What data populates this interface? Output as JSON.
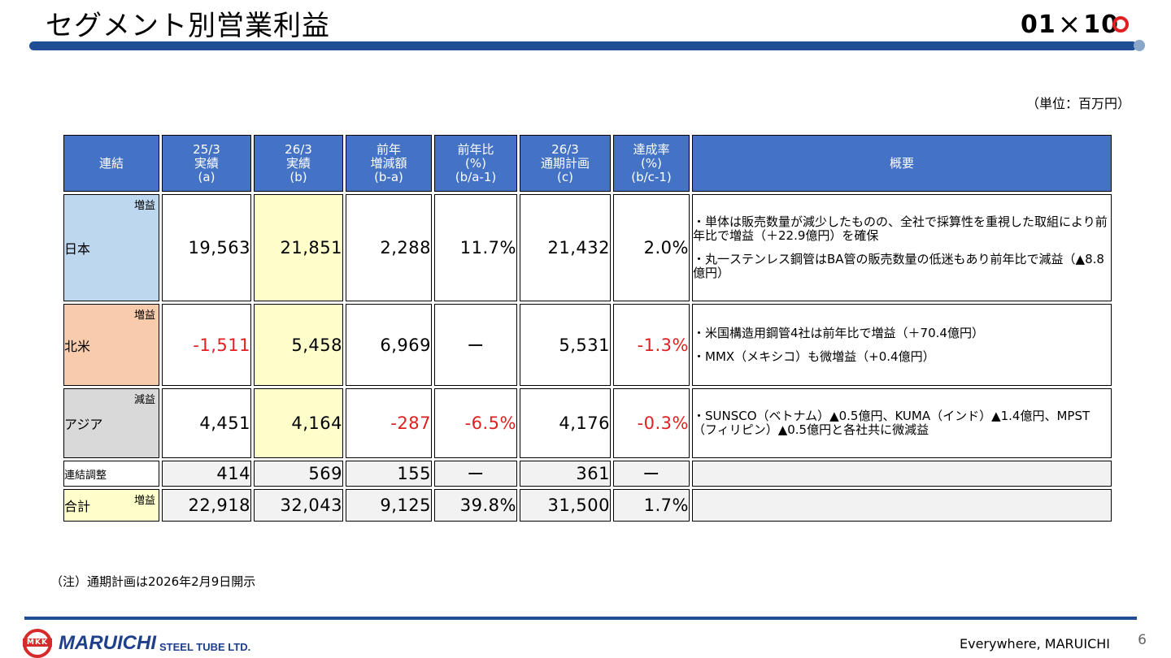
{
  "title": "セグメント別営業利益",
  "brand": {
    "left": "01",
    "cross": "×",
    "right": "10"
  },
  "unit_note": "（単位：百万円）",
  "headers": {
    "col0": "連結",
    "col1": [
      "25/3",
      "実績",
      "(a)"
    ],
    "col2": [
      "26/3",
      "実績",
      "(b)"
    ],
    "col3": [
      "前年",
      "増減額",
      "(b-a)"
    ],
    "col4": [
      "前年比",
      "(%)",
      "(b/a-1)"
    ],
    "col5": [
      "26/3",
      "通期計画",
      "(c)"
    ],
    "col6": [
      "達成率",
      "(%)",
      "(b/c-1)"
    ],
    "col7": "概要"
  },
  "rows": {
    "japan": {
      "region": "日本",
      "tag": "増益",
      "a": "19,563",
      "b": "21,851",
      "diff": "2,288",
      "yoy": "11.7%",
      "plan": "21,432",
      "rate": "2.0%",
      "summary": [
        "・単体は販売数量が減少したものの、全社で採算性を重視した取組により前年比で増益（＋22.9億円）を確保",
        "・丸一ステンレス鋼管はBA管の販売数量の低迷もあり前年比で減益（▲8.8億円）"
      ]
    },
    "na": {
      "region": "北米",
      "tag": "増益",
      "a": "-1,511",
      "b": "5,458",
      "diff": "6,969",
      "yoy": "ー",
      "plan": "5,531",
      "rate": "-1.3%",
      "summary": [
        "・米国構造用鋼管4社は前年比で増益（＋70.4億円）",
        "・MMX（メキシコ）も微増益（+0.4億円）"
      ]
    },
    "asia": {
      "region": "アジア",
      "tag": "減益",
      "a": "4,451",
      "b": "4,164",
      "diff": "-287",
      "yoy": "-6.5%",
      "plan": "4,176",
      "rate": "-0.3%",
      "summary": [
        "・SUNSCO（ベトナム）▲0.5億円、KUMA（インド）▲1.4億円、MPST（フィリピン）▲0.5億円と各社共に微減益"
      ]
    },
    "adj": {
      "region": "連結調整",
      "a": "414",
      "b": "569",
      "diff": "155",
      "yoy": "ー",
      "plan": "361",
      "rate": "ー"
    },
    "total": {
      "region": "合計",
      "tag": "増益",
      "a": "22,918",
      "b": "32,043",
      "diff": "9,125",
      "yoy": "39.8%",
      "plan": "31,500",
      "rate": "1.7%"
    }
  },
  "footnote": "（注）通期計画は2026年2月9日開示",
  "logo": {
    "mark": "MKK",
    "name": "MARUICHI",
    "sub": "STEEL TUBE LTD."
  },
  "tagline": "Everywhere, MARUICHI",
  "page_number": "6",
  "colors": {
    "header_blue": "#4472c4",
    "bar_blue": "#1f4e94",
    "negative_red": "#e02020",
    "japan_bg": "#bdd7ee",
    "na_bg": "#f8cbad",
    "asia_bg": "#d9d9d9",
    "highlight_yellow": "#ffffcc"
  }
}
